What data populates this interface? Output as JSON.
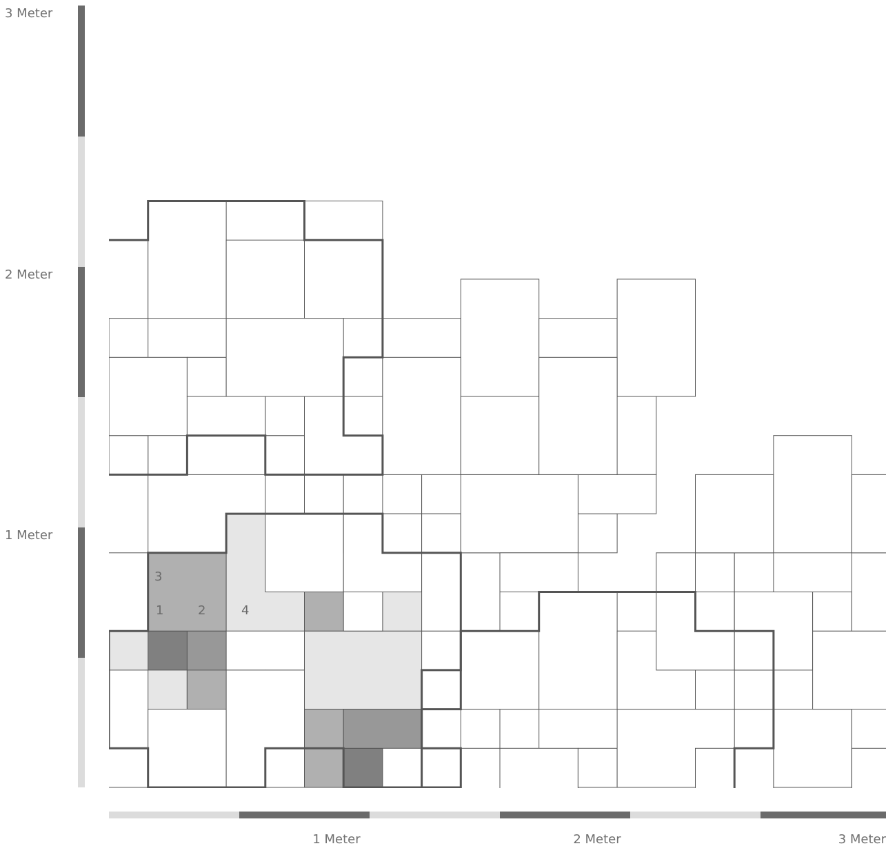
{
  "scale": {
    "x_labels": [
      "1 Meter",
      "2 Meter",
      "3 Meter"
    ],
    "y_labels": [
      "3 Meter",
      "2 Meter",
      "1 Meter"
    ],
    "color_dark": "#6b6b6b",
    "color_light": "#dcdcdc"
  },
  "pattern": {
    "tile_stroke": "#555555",
    "module_outline": "#555555",
    "fill_level_1": "#808080",
    "fill_level_2": "#989898",
    "fill_level_3": "#b0b0b0",
    "fill_level_4": "#e6e6e6"
  },
  "size_labels": [
    "1",
    "2",
    "3",
    "4"
  ]
}
